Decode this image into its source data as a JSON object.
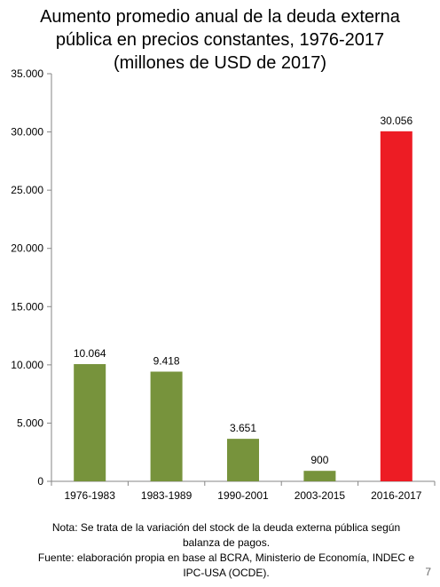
{
  "title_lines": [
    "Aumento promedio anual de la deuda externa",
    "pública en precios constantes, 1976-2017",
    "(millones de USD de 2017)"
  ],
  "chart_data": {
    "type": "bar",
    "categories": [
      "1976-1983",
      "1983-1989",
      "1990-2001",
      "2003-2015",
      "2016-2017"
    ],
    "values": [
      10064,
      9418,
      3651,
      900,
      30056
    ],
    "value_labels": [
      "10.064",
      "9.418",
      "3.651",
      "900",
      "30.056"
    ],
    "bar_colors": [
      "#77933c",
      "#77933c",
      "#77933c",
      "#77933c",
      "#ed1c24"
    ],
    "ylim": [
      0,
      35000
    ],
    "yticks": [
      0,
      5000,
      10000,
      15000,
      20000,
      25000,
      30000,
      35000
    ],
    "ytick_labels": [
      "0",
      "5.000",
      "10.000",
      "15.000",
      "20.000",
      "25.000",
      "30.000",
      "35.000"
    ],
    "grid": false,
    "xlabel": "",
    "ylabel": ""
  },
  "notes": {
    "nota_line1": "Nota: Se trata de la variación del stock de la deuda externa pública según",
    "nota_line2": "balanza de pagos.",
    "fuente_line1": "Fuente: elaboración propia en base al BCRA, Ministerio de Economía, INDEC e",
    "fuente_line2": "IPC-USA (OCDE)."
  },
  "page_number": "7"
}
